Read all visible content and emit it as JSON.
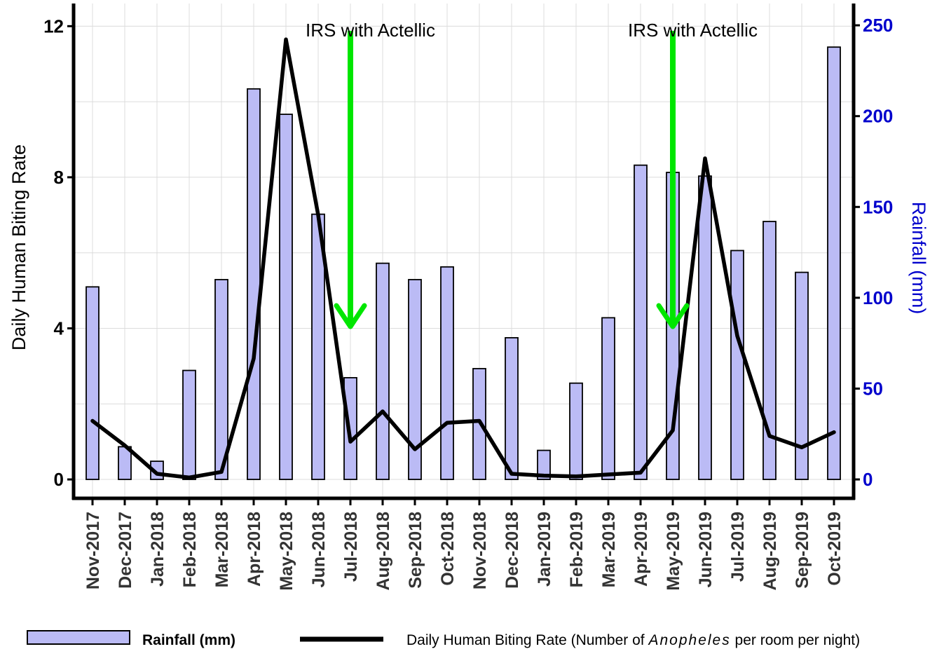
{
  "chart_data": {
    "type": "bar+line",
    "categories": [
      "Nov-2017",
      "Dec-2017",
      "Jan-2018",
      "Feb-2018",
      "Mar-2018",
      "Apr-2018",
      "May-2018",
      "Jun-2018",
      "Jul-2018",
      "Aug-2018",
      "Sep-2018",
      "Oct-2018",
      "Nov-2018",
      "Dec-2018",
      "Jan-2019",
      "Feb-2019",
      "Mar-2019",
      "Apr-2019",
      "May-2019",
      "Jun-2019",
      "Jul-2019",
      "Aug-2019",
      "Sep-2019",
      "Oct-2019"
    ],
    "series": [
      {
        "name": "Rainfall (mm)",
        "type": "bar",
        "axis": "right",
        "color": "#bbbbf5",
        "values": [
          106,
          18,
          10,
          60,
          110,
          215,
          201,
          146,
          56,
          119,
          110,
          117,
          61,
          78,
          16,
          53,
          89,
          173,
          169,
          167,
          126,
          142,
          114,
          238
        ]
      },
      {
        "name": "Daily Human Biting Rate (Number of Anopheles per room per night)",
        "type": "line",
        "axis": "left",
        "color": "#000000",
        "values": [
          1.55,
          0.9,
          0.15,
          0.05,
          0.2,
          3.2,
          11.65,
          7.0,
          1.0,
          1.8,
          0.8,
          1.5,
          1.55,
          0.15,
          0.1,
          0.08,
          0.13,
          0.18,
          1.3,
          8.5,
          3.8,
          1.15,
          0.85,
          1.25
        ]
      }
    ],
    "ylabel_left": "Daily Human Biting Rate",
    "ylabel_right": "Rainfall (mm)",
    "y_left_ticks": [
      "0",
      "4",
      "8",
      "12"
    ],
    "y_left_lim": [
      -0.5,
      12.6
    ],
    "y_right_ticks": [
      "0",
      "50",
      "100",
      "150",
      "200",
      "250"
    ],
    "y_right_lim": [
      -10.4,
      262
    ],
    "grid": true,
    "annotations": [
      {
        "text": "IRS with Actellic",
        "category": "Jul-2018",
        "arrow_color": "#00e600"
      },
      {
        "text": "IRS with Actellic",
        "category": "May-2019",
        "arrow_color": "#00e600"
      }
    ],
    "legend": {
      "placement": "bottom",
      "rainfall_label": "Rainfall (mm)",
      "dhbr_prefix": "Daily Human Biting Rate (Number of ",
      "dhbr_italic": "Anopheles",
      "dhbr_suffix": " per room per night)"
    }
  }
}
